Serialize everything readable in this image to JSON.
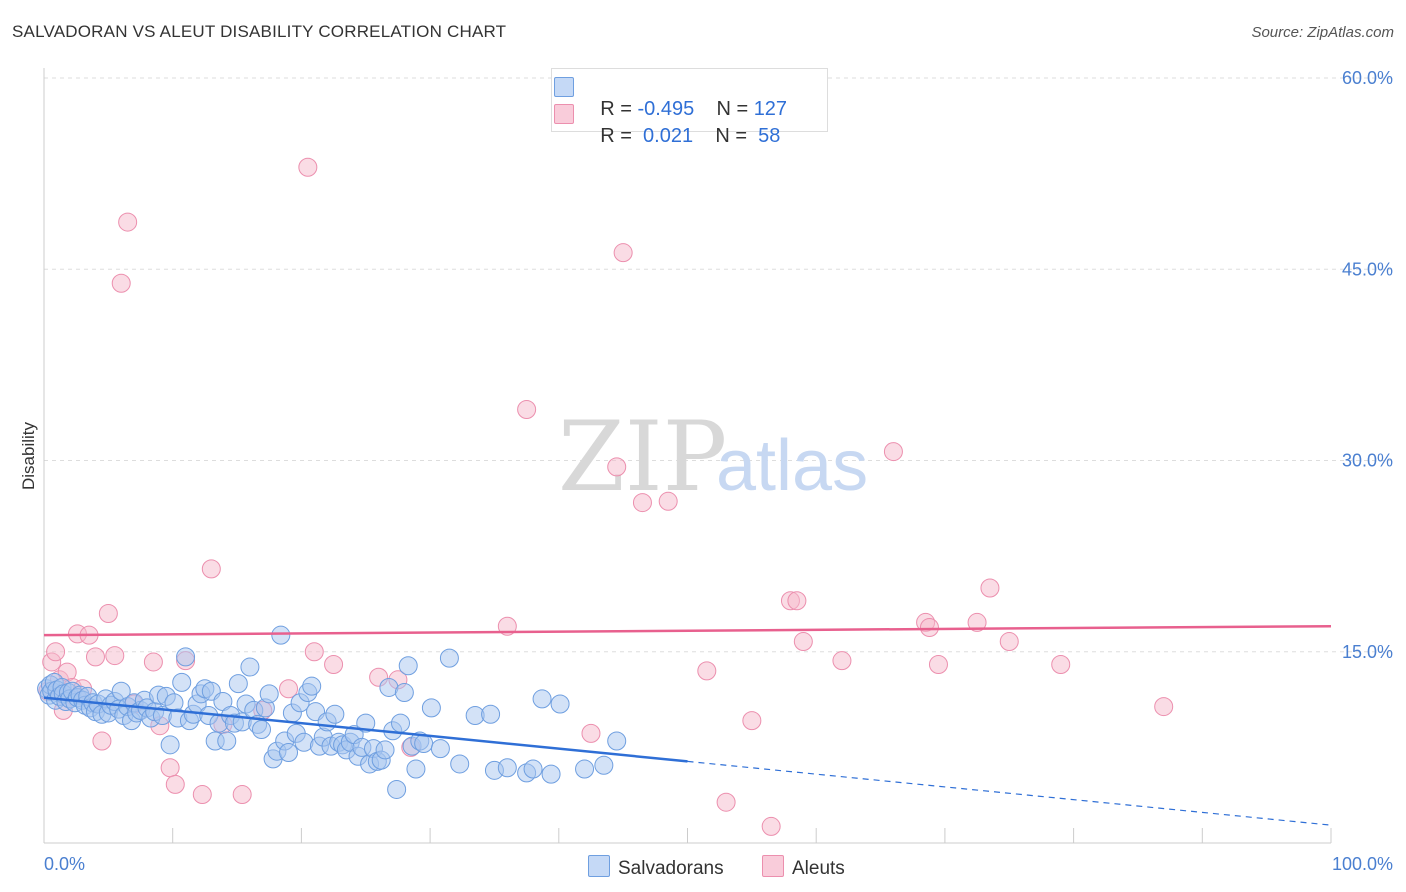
{
  "title": "SALVADORAN VS ALEUT DISABILITY CORRELATION CHART",
  "source": "Source: ZipAtlas.com",
  "watermark": {
    "zip": "ZIP",
    "atlas": "atlas"
  },
  "legend": {
    "rows": [
      {
        "r_label": "R =",
        "r_value": "-0.495",
        "n_label": "N =",
        "n_value": "127"
      },
      {
        "r_label": "R =",
        "r_value": " 0.021",
        "n_label": "N =",
        "n_value": " 58"
      }
    ]
  },
  "bottom_legend": [
    "Salvadorans",
    "Aleuts"
  ],
  "colors": {
    "blue_fill": "#a8c6f0",
    "blue_stroke": "#6f9fe0",
    "blue_line": "#2f6fd6",
    "pink_fill": "#f6b9cc",
    "pink_stroke": "#ec8fae",
    "pink_line": "#e8608e",
    "grid": "#dddddd",
    "tick_text": "#4a7fd0"
  },
  "chart_data": {
    "type": "scatter",
    "title": "SALVADORAN VS ALEUT DISABILITY CORRELATION CHART",
    "xlabel": "",
    "ylabel": "Disability",
    "xlim": [
      0,
      100
    ],
    "ylim": [
      0,
      60
    ],
    "x_tick_labels": [
      "0.0%",
      "100.0%"
    ],
    "y_tick_labels": [
      "15.0%",
      "30.0%",
      "45.0%",
      "60.0%"
    ],
    "y_ticks": [
      15,
      30,
      45,
      60
    ],
    "grid": true,
    "legend_position": "top-center",
    "series": [
      {
        "name": "Salvadorans",
        "r": -0.495,
        "n": 127,
        "trend": {
          "x0": 0,
          "y0": 11.4,
          "x1": 50,
          "y1": 6.4,
          "dashed_to_x": 100,
          "dashed_to_y": 1.4
        },
        "points": [
          [
            0.2,
            12.1
          ],
          [
            0.4,
            11.6
          ],
          [
            0.5,
            12.4
          ],
          [
            0.6,
            11.9
          ],
          [
            0.8,
            12.6
          ],
          [
            0.9,
            11.2
          ],
          [
            1.0,
            12.0
          ],
          [
            1.2,
            11.5
          ],
          [
            1.4,
            12.2
          ],
          [
            1.5,
            11.7
          ],
          [
            1.7,
            11.1
          ],
          [
            1.9,
            11.8
          ],
          [
            2.0,
            11.3
          ],
          [
            2.2,
            11.9
          ],
          [
            2.4,
            11.0
          ],
          [
            2.6,
            11.4
          ],
          [
            2.8,
            11.6
          ],
          [
            3.0,
            11.2
          ],
          [
            3.2,
            10.8
          ],
          [
            3.4,
            11.5
          ],
          [
            3.6,
            10.6
          ],
          [
            3.8,
            11.0
          ],
          [
            4.0,
            10.3
          ],
          [
            4.2,
            10.9
          ],
          [
            4.5,
            10.1
          ],
          [
            4.8,
            11.3
          ],
          [
            5.0,
            10.2
          ],
          [
            5.2,
            10.8
          ],
          [
            5.5,
            11.1
          ],
          [
            5.8,
            10.5
          ],
          [
            6.0,
            11.9
          ],
          [
            6.2,
            10.0
          ],
          [
            6.5,
            10.7
          ],
          [
            6.8,
            9.6
          ],
          [
            7.0,
            11.0
          ],
          [
            7.2,
            10.2
          ],
          [
            7.5,
            10.4
          ],
          [
            7.8,
            11.2
          ],
          [
            8.0,
            10.6
          ],
          [
            8.3,
            9.8
          ],
          [
            8.6,
            10.3
          ],
          [
            8.9,
            11.6
          ],
          [
            9.2,
            10.0
          ],
          [
            9.5,
            11.5
          ],
          [
            9.8,
            7.7
          ],
          [
            10.1,
            11.0
          ],
          [
            10.4,
            9.8
          ],
          [
            10.7,
            12.6
          ],
          [
            11.0,
            14.6
          ],
          [
            11.3,
            9.6
          ],
          [
            11.6,
            10.1
          ],
          [
            11.9,
            10.9
          ],
          [
            12.2,
            11.7
          ],
          [
            12.5,
            12.1
          ],
          [
            12.8,
            10.0
          ],
          [
            13.0,
            11.9
          ],
          [
            13.3,
            8.0
          ],
          [
            13.6,
            9.4
          ],
          [
            13.9,
            11.1
          ],
          [
            14.2,
            8.0
          ],
          [
            14.5,
            10.0
          ],
          [
            14.8,
            9.4
          ],
          [
            15.1,
            12.5
          ],
          [
            15.4,
            9.5
          ],
          [
            15.7,
            10.9
          ],
          [
            16.0,
            13.8
          ],
          [
            16.3,
            10.4
          ],
          [
            16.6,
            9.3
          ],
          [
            16.9,
            8.9
          ],
          [
            17.2,
            10.6
          ],
          [
            17.5,
            11.7
          ],
          [
            17.8,
            6.6
          ],
          [
            18.1,
            7.2
          ],
          [
            18.4,
            16.3
          ],
          [
            18.7,
            8.0
          ],
          [
            19.0,
            7.1
          ],
          [
            19.3,
            10.2
          ],
          [
            19.6,
            8.6
          ],
          [
            19.9,
            11.0
          ],
          [
            20.2,
            7.9
          ],
          [
            20.5,
            11.8
          ],
          [
            20.8,
            12.3
          ],
          [
            21.1,
            10.3
          ],
          [
            21.4,
            7.6
          ],
          [
            21.7,
            8.3
          ],
          [
            22.0,
            9.5
          ],
          [
            22.3,
            7.6
          ],
          [
            22.6,
            10.1
          ],
          [
            22.9,
            7.9
          ],
          [
            23.2,
            7.7
          ],
          [
            23.5,
            7.3
          ],
          [
            23.8,
            7.9
          ],
          [
            24.1,
            8.5
          ],
          [
            24.4,
            6.8
          ],
          [
            24.7,
            7.5
          ],
          [
            25.0,
            9.4
          ],
          [
            25.3,
            6.2
          ],
          [
            25.6,
            7.4
          ],
          [
            25.9,
            6.4
          ],
          [
            26.2,
            6.5
          ],
          [
            26.5,
            7.3
          ],
          [
            26.8,
            12.2
          ],
          [
            27.1,
            8.8
          ],
          [
            27.4,
            4.2
          ],
          [
            27.7,
            9.4
          ],
          [
            28.0,
            11.8
          ],
          [
            28.3,
            13.9
          ],
          [
            28.6,
            7.6
          ],
          [
            28.9,
            5.8
          ],
          [
            29.2,
            8.0
          ],
          [
            29.5,
            7.8
          ],
          [
            30.1,
            10.6
          ],
          [
            30.8,
            7.4
          ],
          [
            31.5,
            14.5
          ],
          [
            32.3,
            6.2
          ],
          [
            33.5,
            10.0
          ],
          [
            34.7,
            10.1
          ],
          [
            35.0,
            5.7
          ],
          [
            36.0,
            5.9
          ],
          [
            37.5,
            5.5
          ],
          [
            38.0,
            5.8
          ],
          [
            38.7,
            11.3
          ],
          [
            39.4,
            5.4
          ],
          [
            40.1,
            10.9
          ],
          [
            42.0,
            5.8
          ],
          [
            43.5,
            6.1
          ],
          [
            44.5,
            8.0
          ]
        ]
      },
      {
        "name": "Aleuts",
        "r": 0.021,
        "n": 58,
        "trend": {
          "x0": 0,
          "y0": 16.3,
          "x1": 100,
          "y1": 17.0
        },
        "points": [
          [
            0.3,
            11.9
          ],
          [
            0.6,
            14.2
          ],
          [
            0.9,
            15.0
          ],
          [
            1.2,
            12.8
          ],
          [
            1.5,
            10.4
          ],
          [
            1.8,
            13.4
          ],
          [
            2.2,
            12.2
          ],
          [
            2.6,
            16.4
          ],
          [
            3.0,
            12.1
          ],
          [
            3.5,
            16.3
          ],
          [
            4.0,
            14.6
          ],
          [
            4.5,
            8.0
          ],
          [
            5.0,
            18.0
          ],
          [
            5.5,
            14.7
          ],
          [
            6.0,
            43.9
          ],
          [
            6.5,
            48.7
          ],
          [
            7.0,
            10.9
          ],
          [
            8.5,
            14.2
          ],
          [
            9.0,
            9.2
          ],
          [
            9.8,
            5.9
          ],
          [
            10.2,
            4.6
          ],
          [
            11.0,
            14.3
          ],
          [
            12.3,
            3.8
          ],
          [
            13.0,
            21.5
          ],
          [
            13.9,
            9.3
          ],
          [
            15.4,
            3.8
          ],
          [
            17.0,
            10.4
          ],
          [
            19.0,
            12.1
          ],
          [
            20.5,
            53.0
          ],
          [
            21.0,
            15.0
          ],
          [
            22.5,
            14.0
          ],
          [
            26.0,
            13.0
          ],
          [
            27.5,
            12.8
          ],
          [
            28.5,
            7.5
          ],
          [
            36.0,
            17.0
          ],
          [
            37.5,
            34.0
          ],
          [
            42.5,
            8.6
          ],
          [
            44.5,
            29.5
          ],
          [
            45.0,
            46.3
          ],
          [
            46.5,
            26.7
          ],
          [
            48.5,
            26.8
          ],
          [
            51.5,
            13.5
          ],
          [
            53.0,
            3.2
          ],
          [
            55.0,
            9.6
          ],
          [
            56.5,
            1.3
          ],
          [
            58.0,
            19.0
          ],
          [
            58.5,
            19.0
          ],
          [
            59.0,
            15.8
          ],
          [
            62.0,
            14.3
          ],
          [
            66.0,
            30.7
          ],
          [
            68.5,
            17.3
          ],
          [
            68.8,
            16.9
          ],
          [
            69.5,
            14.0
          ],
          [
            72.5,
            17.3
          ],
          [
            73.5,
            20.0
          ],
          [
            75.0,
            15.8
          ],
          [
            79.0,
            14.0
          ],
          [
            87.0,
            10.7
          ]
        ]
      }
    ]
  }
}
